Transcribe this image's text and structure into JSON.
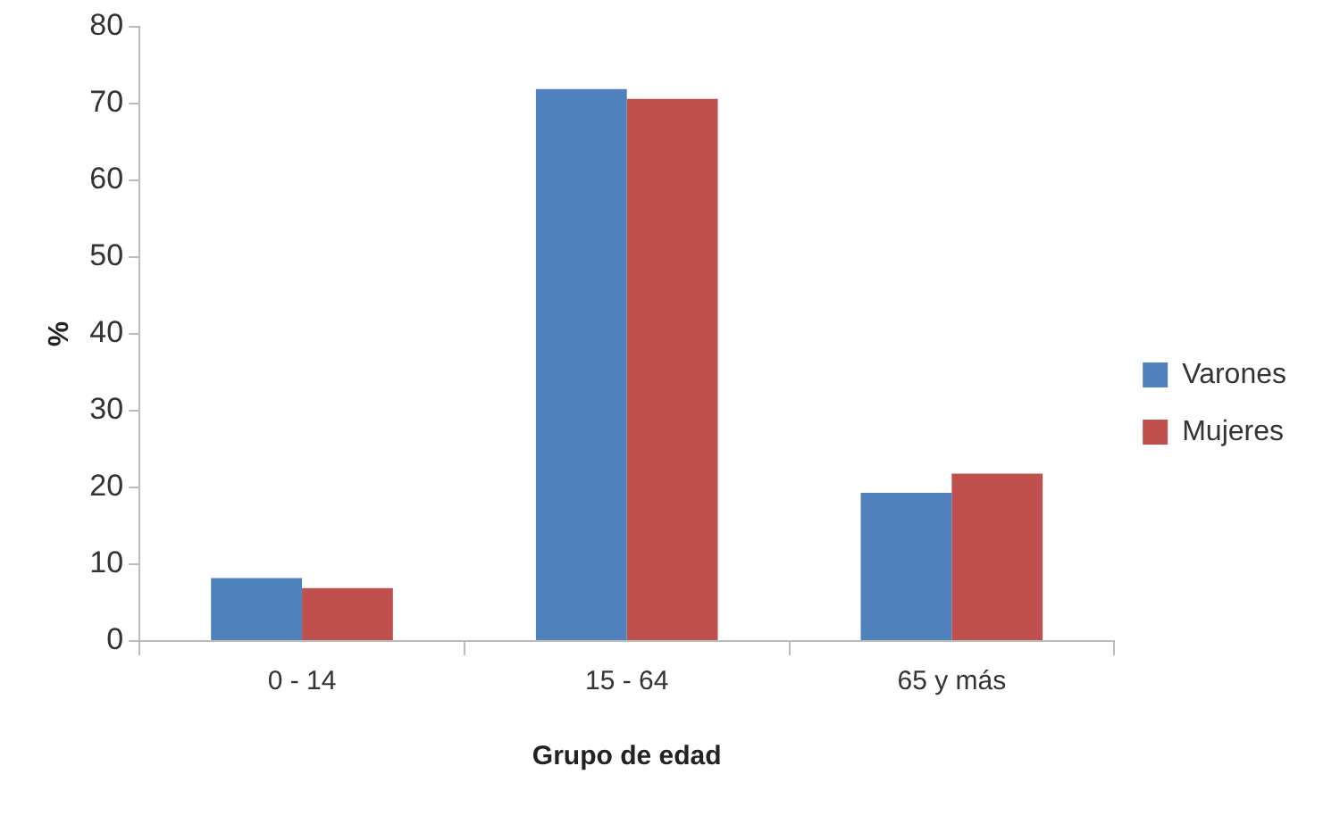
{
  "chart_data": {
    "type": "bar",
    "categories": [
      "0 - 14",
      "15 - 64",
      "65 y más"
    ],
    "series": [
      {
        "name": "Varones",
        "color": "#4f81bd",
        "values": [
          8.2,
          71.9,
          19.3
        ]
      },
      {
        "name": "Mujeres",
        "color": "#c0504d",
        "values": [
          6.9,
          70.6,
          21.8
        ]
      }
    ],
    "xlabel": "Grupo de edad",
    "ylabel": "%",
    "ylim": [
      0,
      80
    ],
    "yticks": [
      0,
      10,
      20,
      30,
      40,
      50,
      60,
      70,
      80
    ],
    "grid": false,
    "legend": "right"
  }
}
